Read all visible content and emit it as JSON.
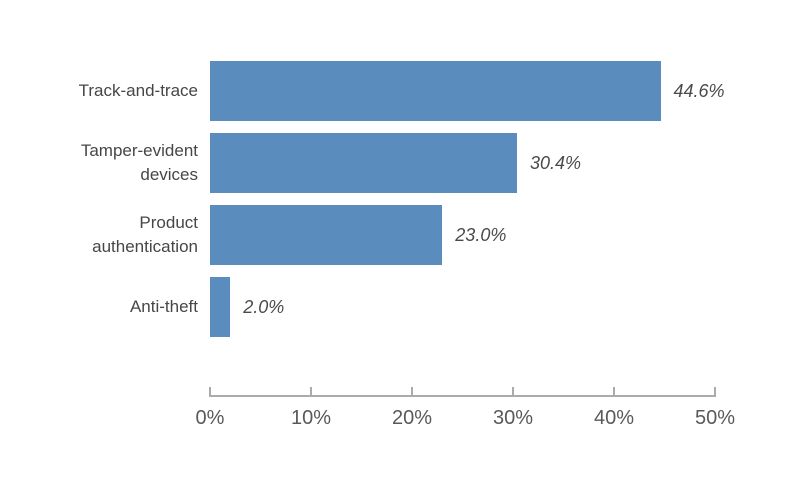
{
  "chart_data": {
    "type": "bar",
    "orientation": "horizontal",
    "title": "",
    "xlabel": "",
    "ylabel": "",
    "categories": [
      "Track-and-trace",
      "Tamper-evident\ndevices",
      "Product\nauthentication",
      "Anti-theft"
    ],
    "values": [
      44.6,
      30.4,
      23.0,
      2.0
    ],
    "value_labels": [
      "44.6%",
      "30.4%",
      "23.0%",
      "2.0%"
    ],
    "xlim": [
      0,
      50
    ],
    "x_ticks": [
      {
        "value": 0,
        "label": "0%"
      },
      {
        "value": 10,
        "label": "10%"
      },
      {
        "value": 20,
        "label": "20%"
      },
      {
        "value": 30,
        "label": "30%"
      },
      {
        "value": 40,
        "label": "40%"
      },
      {
        "value": 50,
        "label": "50%"
      }
    ],
    "grid": false,
    "legend": false,
    "colors": {
      "bar": "#5A8DBE",
      "category_label": "#464646",
      "value_label": "#4A4A4A",
      "axis_line": "#ABABAB",
      "tick_label": "#595959"
    }
  }
}
